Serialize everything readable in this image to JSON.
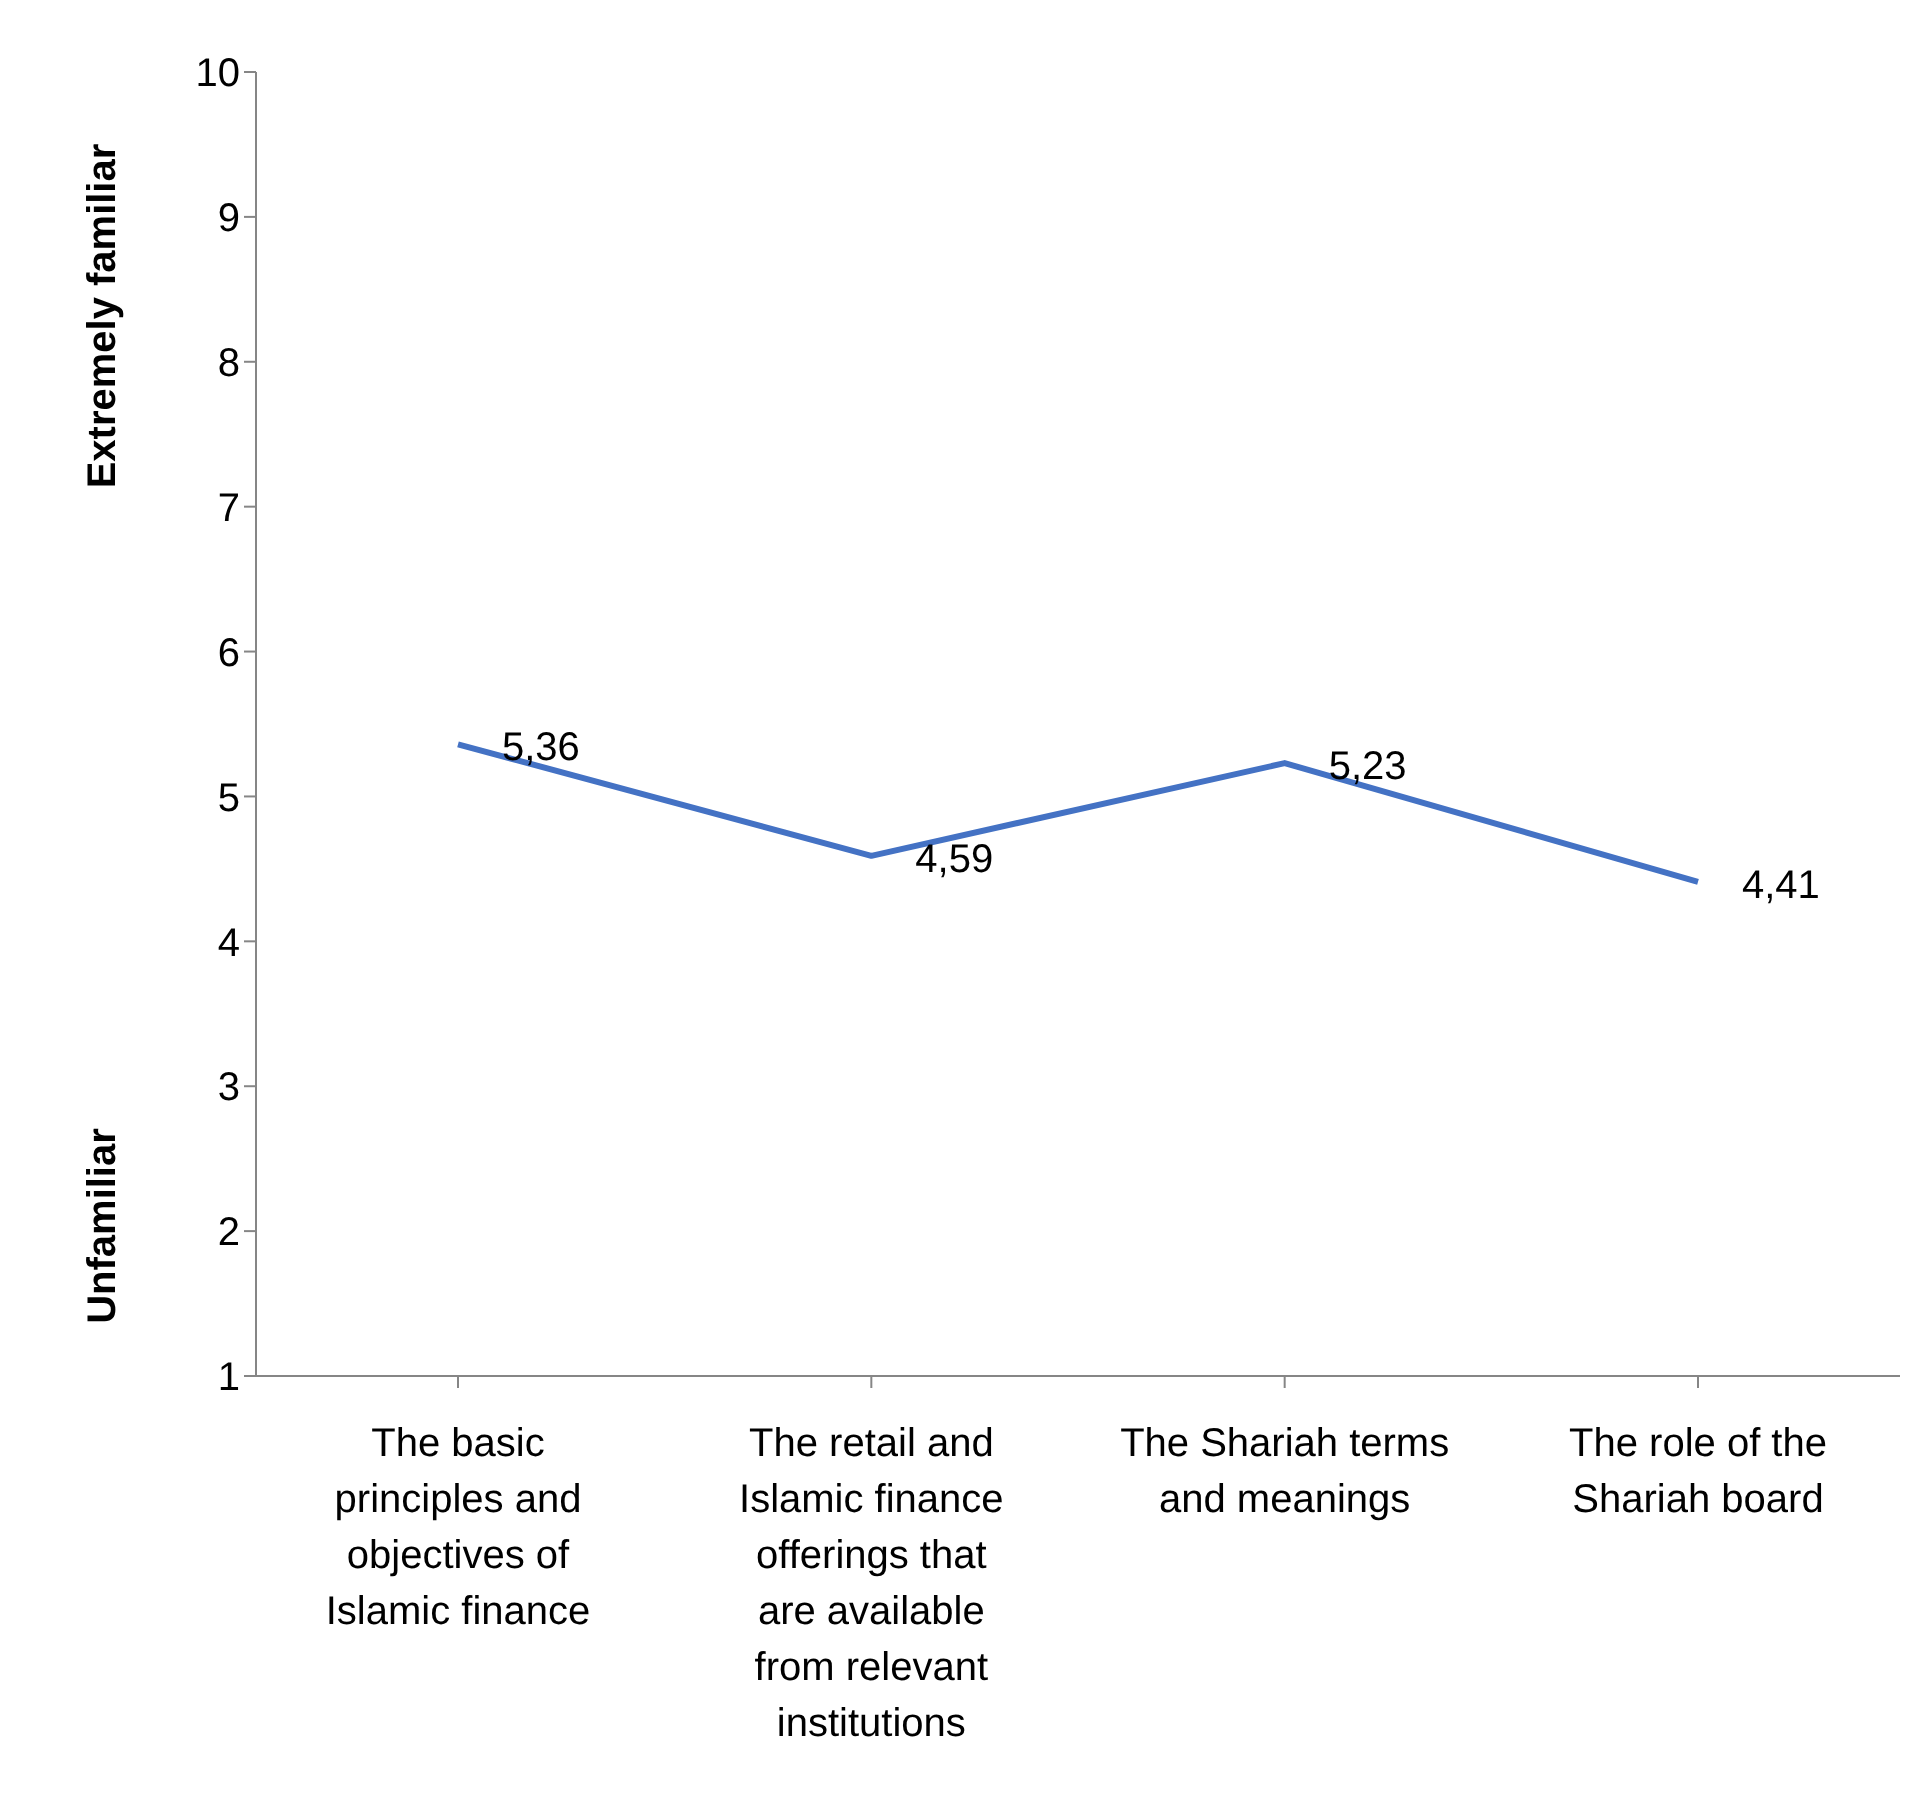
{
  "chart_data": {
    "type": "line",
    "ylabel": "Extremely familiar",
    "annotations": [
      "Unfamiliar"
    ],
    "categories": [
      "The basic principles and objectives of Islamic finance",
      "The retail and Islamic finance offerings that are available from relevant institutions",
      "The Shariah terms and meanings",
      "The role of the Shariah board"
    ],
    "series": [
      {
        "color": "#4472c4",
        "values": [
          5.36,
          4.59,
          5.23,
          4.41
        ],
        "value_labels": [
          "5,36",
          "4,59",
          "5,23",
          "4,41"
        ]
      }
    ],
    "ylim": [
      1,
      10
    ],
    "yticks": [
      1,
      2,
      3,
      4,
      5,
      6,
      7,
      8,
      9,
      10
    ],
    "marker": "none",
    "line_style": "solid"
  }
}
